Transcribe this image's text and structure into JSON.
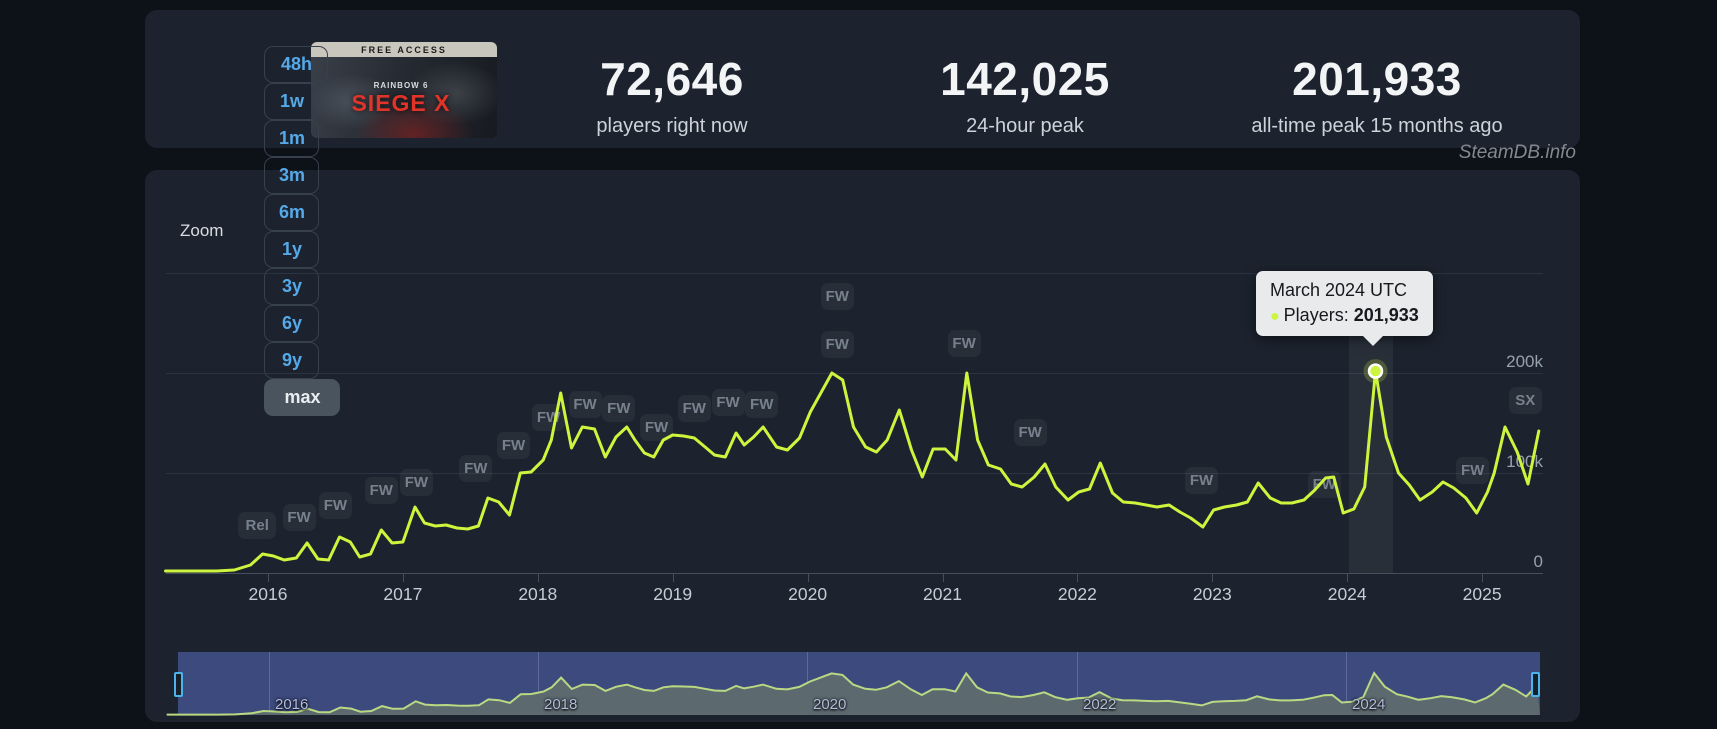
{
  "header": {
    "capsule": {
      "banner": "FREE ACCESS",
      "brand": "RAINBOW 6",
      "title": "SIEGE X"
    },
    "stats": [
      {
        "value": "72,646",
        "label": "players right now"
      },
      {
        "value": "142,025",
        "label": "24-hour peak"
      },
      {
        "value": "201,933",
        "label": "all-time peak 15 months ago"
      }
    ]
  },
  "watermark": "SteamDB.info",
  "toolbar": {
    "label": "Zoom",
    "buttons": [
      "48h",
      "1w",
      "1m",
      "3m",
      "6m",
      "1y",
      "3y",
      "6y",
      "9y",
      "max"
    ],
    "active": "max"
  },
  "tooltip": {
    "title": "March 2024 UTC",
    "series_label": "Players:",
    "value": "201,933"
  },
  "chart_data": {
    "type": "line",
    "series_name": "Players",
    "line_color": "#cdf53d",
    "x_range": [
      2015.24,
      2025.45
    ],
    "ylim": [
      0,
      300000
    ],
    "grid": true,
    "y_ticks": [
      {
        "value": 300000,
        "label": ""
      },
      {
        "value": 200000,
        "label": "200k"
      },
      {
        "value": 100000,
        "label": "100k"
      },
      {
        "value": 0,
        "label": "0"
      }
    ],
    "x_ticks": [
      {
        "year": 2016,
        "label": "2016"
      },
      {
        "year": 2017,
        "label": "2017"
      },
      {
        "year": 2018,
        "label": "2018"
      },
      {
        "year": 2019,
        "label": "2019"
      },
      {
        "year": 2020,
        "label": "2020"
      },
      {
        "year": 2021,
        "label": "2021"
      },
      {
        "year": 2022,
        "label": "2022"
      },
      {
        "year": 2023,
        "label": "2023"
      },
      {
        "year": 2024,
        "label": "2024"
      },
      {
        "year": 2025,
        "label": "2025"
      }
    ],
    "points": [
      [
        2015.24,
        2000
      ],
      [
        2015.45,
        2000
      ],
      [
        2015.62,
        2000
      ],
      [
        2015.75,
        3000
      ],
      [
        2015.87,
        8000
      ],
      [
        2015.96,
        19000
      ],
      [
        2016.04,
        17000
      ],
      [
        2016.12,
        13000
      ],
      [
        2016.21,
        15000
      ],
      [
        2016.29,
        30000
      ],
      [
        2016.37,
        14000
      ],
      [
        2016.45,
        13000
      ],
      [
        2016.53,
        36000
      ],
      [
        2016.61,
        31000
      ],
      [
        2016.68,
        16000
      ],
      [
        2016.76,
        19000
      ],
      [
        2016.84,
        43000
      ],
      [
        2016.92,
        30000
      ],
      [
        2017.0,
        31000
      ],
      [
        2017.09,
        66000
      ],
      [
        2017.16,
        50000
      ],
      [
        2017.24,
        47000
      ],
      [
        2017.32,
        48000
      ],
      [
        2017.4,
        45000
      ],
      [
        2017.48,
        44000
      ],
      [
        2017.56,
        47000
      ],
      [
        2017.63,
        75000
      ],
      [
        2017.71,
        71000
      ],
      [
        2017.79,
        58000
      ],
      [
        2017.87,
        100000
      ],
      [
        2017.95,
        101000
      ],
      [
        2018.04,
        113000
      ],
      [
        2018.1,
        133000
      ],
      [
        2018.17,
        180000
      ],
      [
        2018.25,
        125000
      ],
      [
        2018.33,
        146000
      ],
      [
        2018.42,
        144000
      ],
      [
        2018.5,
        116000
      ],
      [
        2018.58,
        136000
      ],
      [
        2018.66,
        146000
      ],
      [
        2018.72,
        133000
      ],
      [
        2018.79,
        120000
      ],
      [
        2018.86,
        116000
      ],
      [
        2018.93,
        133000
      ],
      [
        2019.0,
        138000
      ],
      [
        2019.08,
        137000
      ],
      [
        2019.16,
        135000
      ],
      [
        2019.24,
        126000
      ],
      [
        2019.31,
        118000
      ],
      [
        2019.39,
        116000
      ],
      [
        2019.47,
        140000
      ],
      [
        2019.53,
        128000
      ],
      [
        2019.6,
        136000
      ],
      [
        2019.67,
        146000
      ],
      [
        2019.77,
        126000
      ],
      [
        2019.85,
        123000
      ],
      [
        2019.94,
        135000
      ],
      [
        2020.02,
        161000
      ],
      [
        2020.18,
        200000
      ],
      [
        2020.26,
        193000
      ],
      [
        2020.34,
        146000
      ],
      [
        2020.43,
        126000
      ],
      [
        2020.51,
        121000
      ],
      [
        2020.59,
        133000
      ],
      [
        2020.68,
        163000
      ],
      [
        2020.77,
        123000
      ],
      [
        2020.85,
        96000
      ],
      [
        2020.93,
        124000
      ],
      [
        2021.02,
        124000
      ],
      [
        2021.1,
        113000
      ],
      [
        2021.18,
        200000
      ],
      [
        2021.26,
        133000
      ],
      [
        2021.34,
        108000
      ],
      [
        2021.43,
        104000
      ],
      [
        2021.51,
        89000
      ],
      [
        2021.59,
        86000
      ],
      [
        2021.68,
        96000
      ],
      [
        2021.76,
        109000
      ],
      [
        2021.84,
        86000
      ],
      [
        2021.93,
        73000
      ],
      [
        2022.01,
        81000
      ],
      [
        2022.09,
        84000
      ],
      [
        2022.17,
        110000
      ],
      [
        2022.26,
        80000
      ],
      [
        2022.34,
        71000
      ],
      [
        2022.43,
        70000
      ],
      [
        2022.51,
        68000
      ],
      [
        2022.59,
        66000
      ],
      [
        2022.68,
        68000
      ],
      [
        2022.76,
        61000
      ],
      [
        2022.84,
        55000
      ],
      [
        2022.93,
        46000
      ],
      [
        2023.01,
        63000
      ],
      [
        2023.09,
        66000
      ],
      [
        2023.18,
        68000
      ],
      [
        2023.26,
        71000
      ],
      [
        2023.34,
        90000
      ],
      [
        2023.43,
        75000
      ],
      [
        2023.51,
        70000
      ],
      [
        2023.59,
        70000
      ],
      [
        2023.68,
        73000
      ],
      [
        2023.76,
        83000
      ],
      [
        2023.84,
        95000
      ],
      [
        2023.9,
        96000
      ],
      [
        2023.97,
        60000
      ],
      [
        2024.05,
        64000
      ],
      [
        2024.13,
        86000
      ],
      [
        2024.21,
        201933
      ],
      [
        2024.29,
        136000
      ],
      [
        2024.38,
        100000
      ],
      [
        2024.46,
        88000
      ],
      [
        2024.54,
        73000
      ],
      [
        2024.63,
        81000
      ],
      [
        2024.71,
        91000
      ],
      [
        2024.79,
        85000
      ],
      [
        2024.88,
        75000
      ],
      [
        2024.96,
        60000
      ],
      [
        2025.04,
        81000
      ],
      [
        2025.09,
        100000
      ],
      [
        2025.17,
        146000
      ],
      [
        2025.26,
        121000
      ],
      [
        2025.34,
        89000
      ],
      [
        2025.42,
        142025
      ]
    ],
    "selected_point": {
      "year": 2024.21,
      "players": 201933
    },
    "flags": [
      {
        "label": "Rel",
        "year": 2015.92,
        "players": 48000
      },
      {
        "label": "FW",
        "year": 2016.23,
        "players": 56000
      },
      {
        "label": "FW",
        "year": 2016.5,
        "players": 68000
      },
      {
        "label": "FW",
        "year": 2016.84,
        "players": 83000
      },
      {
        "label": "FW",
        "year": 2017.1,
        "players": 91000
      },
      {
        "label": "FW",
        "year": 2017.54,
        "players": 105000
      },
      {
        "label": "FW",
        "year": 2017.82,
        "players": 128000
      },
      {
        "label": "FW",
        "year": 2018.08,
        "players": 156000
      },
      {
        "label": "FW",
        "year": 2018.35,
        "players": 169000
      },
      {
        "label": "FW",
        "year": 2018.6,
        "players": 165000
      },
      {
        "label": "FW",
        "year": 2018.88,
        "players": 146000
      },
      {
        "label": "FW",
        "year": 2019.16,
        "players": 165000
      },
      {
        "label": "FW",
        "year": 2019.41,
        "players": 171000
      },
      {
        "label": "FW",
        "year": 2019.66,
        "players": 169000
      },
      {
        "label": "FW",
        "year": 2020.22,
        "players": 277000
      },
      {
        "label": "FW",
        "year": 2020.22,
        "players": 229000
      },
      {
        "label": "FW",
        "year": 2021.16,
        "players": 230000
      },
      {
        "label": "FW",
        "year": 2021.65,
        "players": 141000
      },
      {
        "label": "FW",
        "year": 2022.92,
        "players": 93000
      },
      {
        "label": "FW",
        "year": 2023.83,
        "players": 89000
      },
      {
        "label": "FW",
        "year": 2024.93,
        "players": 103000
      },
      {
        "label": "SX",
        "year": 2025.32,
        "players": 173000
      }
    ],
    "navigator": {
      "ticks": [
        {
          "year": 2016,
          "label": "2016"
        },
        {
          "year": 2018,
          "label": "2018"
        },
        {
          "year": 2020,
          "label": "2020"
        },
        {
          "year": 2022,
          "label": "2022"
        },
        {
          "year": 2024,
          "label": "2024"
        }
      ]
    }
  }
}
